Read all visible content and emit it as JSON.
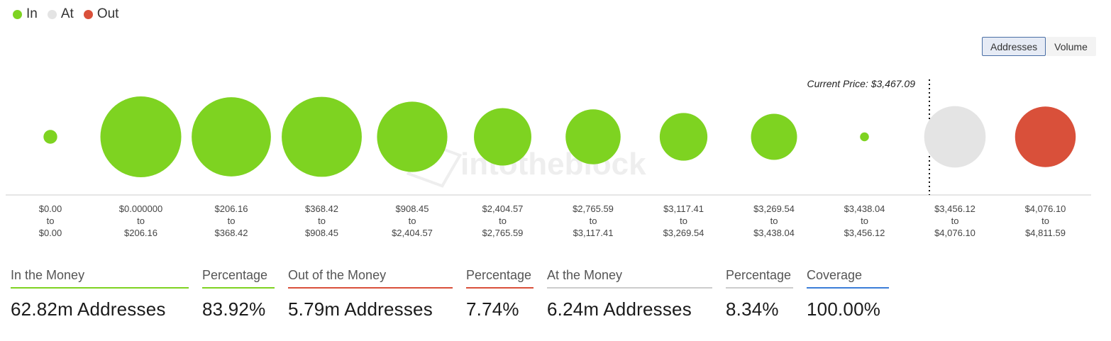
{
  "legend": [
    {
      "label": "In",
      "color": "#7ed321"
    },
    {
      "label": "At",
      "color": "#e4e4e4"
    },
    {
      "label": "Out",
      "color": "#d9503a"
    }
  ],
  "toggle": {
    "addresses_label": "Addresses",
    "volume_label": "Volume",
    "active": "Addresses"
  },
  "watermark": "intotheblock",
  "chart_data": {
    "type": "bubble",
    "size_metric": "Addresses",
    "categories": [
      {
        "from": "$0.00",
        "to": "$0.00",
        "status": "In",
        "relative_size": 0.17
      },
      {
        "from": "$0.000000",
        "to": "$206.16",
        "status": "In",
        "relative_size": 1.0
      },
      {
        "from": "$206.16",
        "to": "$368.42",
        "status": "In",
        "relative_size": 0.98
      },
      {
        "from": "$368.42",
        "to": "$908.45",
        "status": "In",
        "relative_size": 0.99
      },
      {
        "from": "$908.45",
        "to": "$2,404.57",
        "status": "In",
        "relative_size": 0.87
      },
      {
        "from": "$2,404.57",
        "to": "$2,765.59",
        "status": "In",
        "relative_size": 0.71
      },
      {
        "from": "$2,765.59",
        "to": "$3,117.41",
        "status": "In",
        "relative_size": 0.68
      },
      {
        "from": "$3,117.41",
        "to": "$3,269.54",
        "status": "In",
        "relative_size": 0.59
      },
      {
        "from": "$3,269.54",
        "to": "$3,438.04",
        "status": "In",
        "relative_size": 0.57
      },
      {
        "from": "$3,438.04",
        "to": "$3,456.12",
        "status": "In",
        "relative_size": 0.11
      },
      {
        "from": "$3,456.12",
        "to": "$4,076.10",
        "status": "At",
        "relative_size": 0.76
      },
      {
        "from": "$4,076.10",
        "to": "$4,811.59",
        "status": "Out",
        "relative_size": 0.75
      }
    ],
    "to_word": "to",
    "current_price": {
      "label": "Current Price: $3,467.09",
      "value": 3467.09
    }
  },
  "stats": [
    {
      "key": "in",
      "label": "In the Money",
      "value": "62.82m Addresses",
      "color": "#7ed321"
    },
    {
      "key": "in_pct",
      "label": "Percentage",
      "value": "83.92%",
      "color": "#7ed321"
    },
    {
      "key": "out",
      "label": "Out of the Money",
      "value": "5.79m Addresses",
      "color": "#d9503a"
    },
    {
      "key": "out_pct",
      "label": "Percentage",
      "value": "7.74%",
      "color": "#d9503a"
    },
    {
      "key": "at",
      "label": "At the Money",
      "value": "6.24m Addresses",
      "color": "#cccccc"
    },
    {
      "key": "at_pct",
      "label": "Percentage",
      "value": "8.34%",
      "color": "#cccccc"
    },
    {
      "key": "coverage",
      "label": "Coverage",
      "value": "100.00%",
      "color": "#3b7dd8"
    }
  ]
}
